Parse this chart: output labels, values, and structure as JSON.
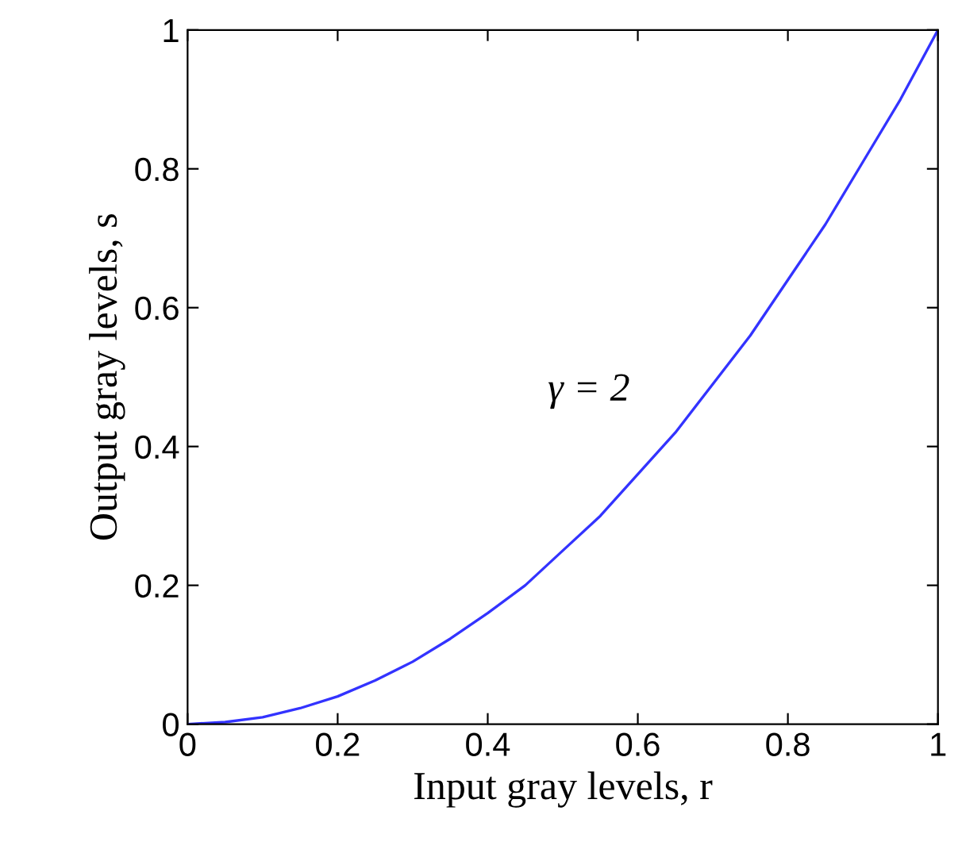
{
  "chart_data": {
    "type": "line",
    "xlabel": "Input gray levels, r",
    "ylabel": "Output gray levels, s",
    "annotations": [
      "γ = 2"
    ],
    "x": [
      0,
      0.05,
      0.1,
      0.15,
      0.2,
      0.25,
      0.3,
      0.35,
      0.4,
      0.45,
      0.5,
      0.55,
      0.6,
      0.65,
      0.7,
      0.75,
      0.8,
      0.85,
      0.9,
      0.95,
      1
    ],
    "series": [
      {
        "color": "#3333ff",
        "values": [
          0,
          0.003,
          0.01,
          0.023,
          0.04,
          0.063,
          0.09,
          0.123,
          0.16,
          0.2,
          0.25,
          0.3,
          0.36,
          0.42,
          0.49,
          0.56,
          0.64,
          0.72,
          0.81,
          0.9,
          1
        ]
      }
    ],
    "xlim": [
      0,
      1
    ],
    "ylim": [
      0,
      1
    ],
    "xticks": [
      0,
      0.2,
      0.4,
      0.6,
      0.8,
      1
    ],
    "yticks": [
      0,
      0.2,
      0.4,
      0.6,
      0.8,
      1
    ],
    "grid": false,
    "marker": "none",
    "line_style": "solid"
  }
}
